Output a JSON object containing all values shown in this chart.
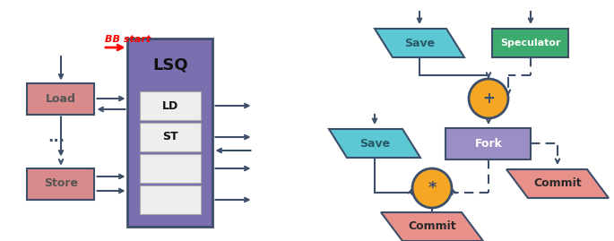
{
  "fig_width": 6.85,
  "fig_height": 2.69,
  "dpi": 100,
  "bg_color": "#ffffff",
  "left": {
    "lsq_color": "#7B6FAF",
    "load_store_color": "#D98A8A",
    "ld_st_inner_color": "#eeeeee",
    "arrow_color": "#3D4F6B",
    "bb_start_color": "#ee0000",
    "lsq_label": "LSQ",
    "load_label": "Load",
    "store_label": "Store",
    "ld_label": "LD",
    "st_label": "ST",
    "bb_label": "BB start"
  },
  "right": {
    "save_color": "#5BC8D4",
    "speculator_color": "#3DAA6E",
    "fork_color": "#9B8EC4",
    "commit_color": "#E8908A",
    "circle_color": "#F5A623",
    "circle_border": "#3D4F6B",
    "arrow_color": "#3D4F6B",
    "text_dark": "#3D4F6B",
    "save_label": "Save",
    "speculator_label": "Speculator",
    "fork_label": "Fork",
    "commit_label": "Commit",
    "commit2_label": "Commit"
  }
}
